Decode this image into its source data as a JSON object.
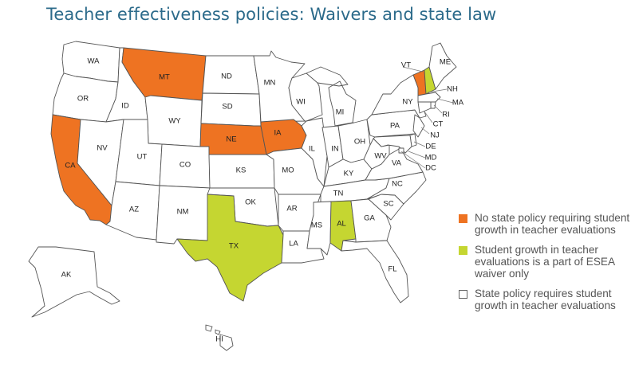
{
  "title": "Teacher effectiveness policies: Waivers and state law",
  "colors": {
    "no_policy": "#ee7322",
    "waiver_only": "#c5d631",
    "state_policy": "#ffffff",
    "border": "#555555",
    "title": "#2b6a8a"
  },
  "states": {
    "WA": {
      "label": "WA",
      "category": "state_policy"
    },
    "OR": {
      "label": "OR",
      "category": "state_policy"
    },
    "CA": {
      "label": "CA",
      "category": "no_policy"
    },
    "ID": {
      "label": "ID",
      "category": "state_policy"
    },
    "NV": {
      "label": "NV",
      "category": "state_policy"
    },
    "MT": {
      "label": "MT",
      "category": "no_policy"
    },
    "WY": {
      "label": "WY",
      "category": "state_policy"
    },
    "UT": {
      "label": "UT",
      "category": "state_policy"
    },
    "AZ": {
      "label": "AZ",
      "category": "state_policy"
    },
    "CO": {
      "label": "CO",
      "category": "state_policy"
    },
    "NM": {
      "label": "NM",
      "category": "state_policy"
    },
    "ND": {
      "label": "ND",
      "category": "state_policy"
    },
    "SD": {
      "label": "SD",
      "category": "state_policy"
    },
    "NE": {
      "label": "NE",
      "category": "no_policy"
    },
    "KS": {
      "label": "KS",
      "category": "state_policy"
    },
    "OK": {
      "label": "OK",
      "category": "state_policy"
    },
    "TX": {
      "label": "TX",
      "category": "waiver_only"
    },
    "MN": {
      "label": "MN",
      "category": "state_policy"
    },
    "IA": {
      "label": "IA",
      "category": "no_policy"
    },
    "MO": {
      "label": "MO",
      "category": "state_policy"
    },
    "AR": {
      "label": "AR",
      "category": "state_policy"
    },
    "LA": {
      "label": "LA",
      "category": "state_policy"
    },
    "WI": {
      "label": "WI",
      "category": "state_policy"
    },
    "IL": {
      "label": "IL",
      "category": "state_policy"
    },
    "MI": {
      "label": "MI",
      "category": "state_policy"
    },
    "IN": {
      "label": "IN",
      "category": "state_policy"
    },
    "OH": {
      "label": "OH",
      "category": "state_policy"
    },
    "KY": {
      "label": "KY",
      "category": "state_policy"
    },
    "TN": {
      "label": "TN",
      "category": "state_policy"
    },
    "MS": {
      "label": "MS",
      "category": "state_policy"
    },
    "AL": {
      "label": "AL",
      "category": "waiver_only"
    },
    "GA": {
      "label": "GA",
      "category": "state_policy"
    },
    "FL": {
      "label": "FL",
      "category": "state_policy"
    },
    "SC": {
      "label": "SC",
      "category": "state_policy"
    },
    "NC": {
      "label": "NC",
      "category": "state_policy"
    },
    "VA": {
      "label": "VA",
      "category": "state_policy"
    },
    "WV": {
      "label": "WV",
      "category": "state_policy"
    },
    "PA": {
      "label": "PA",
      "category": "state_policy"
    },
    "NY": {
      "label": "NY",
      "category": "state_policy"
    },
    "VT": {
      "label": "VT",
      "category": "no_policy"
    },
    "NH": {
      "label": "NH",
      "category": "waiver_only"
    },
    "ME": {
      "label": "ME",
      "category": "state_policy"
    },
    "MA": {
      "label": "MA",
      "category": "state_policy"
    },
    "RI": {
      "label": "RI",
      "category": "state_policy"
    },
    "CT": {
      "label": "CT",
      "category": "state_policy"
    },
    "NJ": {
      "label": "NJ",
      "category": "state_policy"
    },
    "DE": {
      "label": "DE",
      "category": "state_policy"
    },
    "MD": {
      "label": "MD",
      "category": "state_policy"
    },
    "DC": {
      "label": "DC",
      "category": "state_policy"
    },
    "AK": {
      "label": "AK",
      "category": "state_policy"
    },
    "HI": {
      "label": "HI",
      "category": "state_policy"
    }
  },
  "legend": [
    {
      "category": "no_policy",
      "label": "No state policy requiring student growth in teacher evaluations"
    },
    {
      "category": "waiver_only",
      "label": "Student growth in teacher evaluations is a part of ESEA waiver only"
    },
    {
      "category": "state_policy",
      "label": "State policy requires student growth in teacher evaluations"
    }
  ]
}
